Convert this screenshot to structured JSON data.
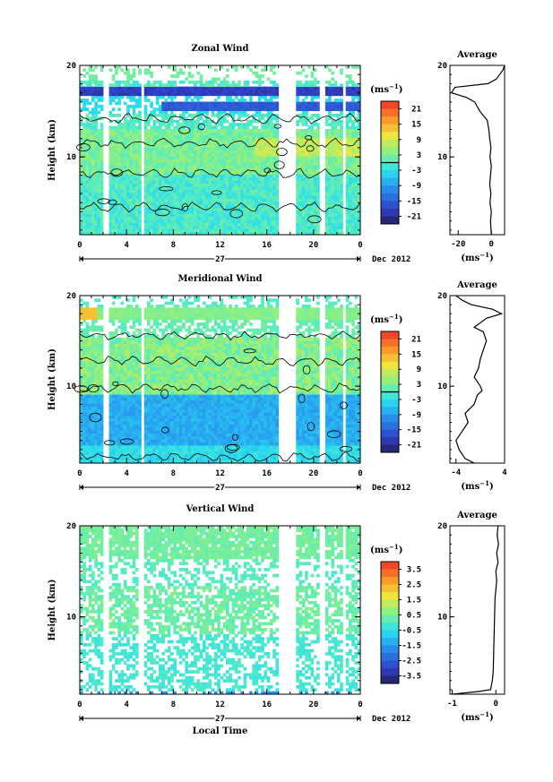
{
  "chart_data": [
    {
      "type": "heatmap",
      "panel": "zonal",
      "title": "Zonal Wind",
      "ylabel": "Height (km)",
      "y_ticks": [
        "20",
        "10"
      ],
      "x_ticks": [
        "0",
        "4",
        "8",
        "12",
        "16",
        "20",
        "0"
      ],
      "date_label": "27",
      "period_label": "Dec 2012",
      "colorbar": {
        "unit_base": "(ms",
        "unit_exp": "−1",
        "unit_end": ")",
        "tick_labels": [
          "21",
          "15",
          "9",
          "3",
          "-3",
          "-9",
          "-15",
          "-21"
        ],
        "range": [
          -24,
          24
        ]
      },
      "contour_level": 0,
      "average": {
        "title": "Average",
        "y_ticks": [
          "20",
          "10"
        ],
        "x_ticks": [
          "-20",
          "0"
        ],
        "xlabel_base": "(ms",
        "xlabel_exp": "−1",
        "xlabel_end": ")",
        "xlim": [
          -25,
          8
        ],
        "ylim": [
          1.5,
          20
        ],
        "profile": [
          [
            1.5,
            0
          ],
          [
            3,
            -0.5
          ],
          [
            4,
            0
          ],
          [
            5,
            -0.8
          ],
          [
            6,
            -0.3
          ],
          [
            7,
            -1
          ],
          [
            8,
            -0.5
          ],
          [
            9,
            0
          ],
          [
            10,
            -0.8
          ],
          [
            11,
            -0.2
          ],
          [
            12,
            -1
          ],
          [
            13,
            -1.5
          ],
          [
            14,
            -2.5
          ],
          [
            15,
            -7
          ],
          [
            16,
            -10
          ],
          [
            16.5,
            -15
          ],
          [
            17,
            -24
          ],
          [
            17.6,
            -22
          ],
          [
            18,
            -2
          ],
          [
            18.5,
            3
          ],
          [
            19,
            5
          ],
          [
            19.5,
            7
          ],
          [
            20,
            8
          ]
        ]
      }
    },
    {
      "type": "heatmap",
      "panel": "meridional",
      "title": "Meridional Wind",
      "ylabel": "Height (km)",
      "y_ticks": [
        "20",
        "10"
      ],
      "x_ticks": [
        "0",
        "4",
        "8",
        "12",
        "16",
        "20",
        "0"
      ],
      "date_label": "27",
      "period_label": "Dec 2012",
      "colorbar": {
        "unit_base": "(ms",
        "unit_exp": "−1",
        "unit_end": ")",
        "tick_labels": [
          "21",
          "15",
          "9",
          "3",
          "-3",
          "-9",
          "-15",
          "-21"
        ],
        "range": [
          -24,
          24
        ]
      },
      "contour_level": 0,
      "average": {
        "title": "Average",
        "y_ticks": [
          "20",
          "10"
        ],
        "x_ticks": [
          "-4",
          "4"
        ],
        "xlabel_base": "(ms",
        "xlabel_exp": "−1",
        "xlabel_end": ")",
        "xlim": [
          -5,
          4
        ],
        "ylim": [
          1.5,
          20
        ],
        "profile": [
          [
            1.5,
            -1
          ],
          [
            2,
            -2.5
          ],
          [
            3,
            -3.5
          ],
          [
            4,
            -4
          ],
          [
            5,
            -3
          ],
          [
            6,
            -2
          ],
          [
            7,
            -2.5
          ],
          [
            8,
            -1
          ],
          [
            9,
            -0.5
          ],
          [
            9.5,
            0.3
          ],
          [
            10,
            0
          ],
          [
            11,
            -1
          ],
          [
            12,
            -0.3
          ],
          [
            13,
            0
          ],
          [
            14,
            0.5
          ],
          [
            15,
            1
          ],
          [
            16,
            0.5
          ],
          [
            16.5,
            -1
          ],
          [
            17.5,
            1
          ],
          [
            18,
            3.5
          ],
          [
            18.5,
            2
          ],
          [
            19,
            -1.5
          ],
          [
            19.5,
            -3
          ],
          [
            20,
            -4
          ]
        ]
      }
    },
    {
      "type": "heatmap",
      "panel": "vertical",
      "title": "Vertical Wind",
      "ylabel": "Height (km)",
      "xlabel": "Local Time",
      "y_ticks": [
        "20",
        "10"
      ],
      "x_ticks": [
        "0",
        "4",
        "8",
        "12",
        "16",
        "20",
        "0"
      ],
      "date_label": "27",
      "period_label": "Dec 2012",
      "colorbar": {
        "unit_base": "(ms",
        "unit_exp": "−1",
        "unit_end": ")",
        "tick_labels": [
          "3.5",
          "2.5",
          "1.5",
          "0.5",
          "-0.5",
          "-1.5",
          "-2.5",
          "-3.5"
        ],
        "range": [
          -4,
          4
        ]
      },
      "average": {
        "title": "Average",
        "y_ticks": [
          "20",
          "10"
        ],
        "x_ticks": [
          "-1",
          "0"
        ],
        "xlabel_base": "(ms",
        "xlabel_exp": "−1",
        "xlabel_end": ")",
        "xlim": [
          -1.05,
          0.2
        ],
        "ylim": [
          1.5,
          20
        ],
        "profile": [
          [
            1.5,
            -1
          ],
          [
            1.8,
            -0.4
          ],
          [
            2,
            -0.12
          ],
          [
            3,
            -0.08
          ],
          [
            4,
            -0.06
          ],
          [
            6,
            -0.05
          ],
          [
            8,
            -0.04
          ],
          [
            10,
            -0.03
          ],
          [
            12,
            -0.02
          ],
          [
            14,
            0.02
          ],
          [
            15,
            0
          ],
          [
            16,
            0.05
          ],
          [
            17,
            0.02
          ],
          [
            18,
            0.06
          ],
          [
            19,
            0.03
          ],
          [
            20,
            0.05
          ]
        ]
      }
    }
  ]
}
